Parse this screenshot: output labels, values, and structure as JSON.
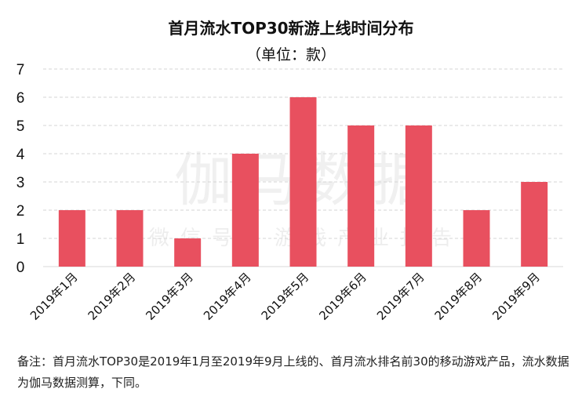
{
  "chart_data": {
    "type": "bar",
    "title": "首月流水TOP30新游上线时间分布",
    "subtitle": "（单位：款）",
    "categories": [
      "2019年1月",
      "2019年2月",
      "2019年3月",
      "2019年4月",
      "2019年5月",
      "2019年6月",
      "2019年7月",
      "2019年8月",
      "2019年9月"
    ],
    "values": [
      2,
      2,
      1,
      4,
      6,
      5,
      5,
      2,
      3
    ],
    "xlabel": "",
    "ylabel": "",
    "ylim": [
      0,
      7
    ],
    "yticks": [
      0,
      1,
      2,
      3,
      4,
      5,
      6,
      7
    ],
    "grid": true,
    "bar_color": "#e8505f"
  },
  "watermark": {
    "main": "伽马数据",
    "sub": "微信号：游戏产业报告"
  },
  "note": "备注：首月流水TOP30是2019年1月至2019年9月上线的、首月流水排名前30的移动游戏产品，流水数据为伽马数据测算，下同。"
}
